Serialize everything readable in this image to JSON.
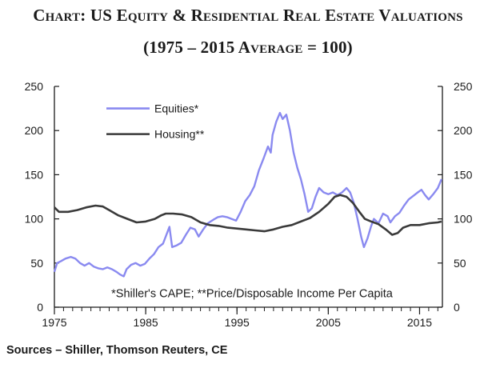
{
  "header": {
    "title_line1": "Chart: US Equity & Residential Real Estate Valuations",
    "title_line2": "(1975 – 2015 Average = 100)"
  },
  "footer": {
    "source": "Sources – Shiller, Thomson Reuters, CE"
  },
  "chart_data": {
    "type": "line",
    "title": "Chart: US Equity & Residential Real Estate Valuations (1975 – 2015 Average = 100)",
    "xlim": [
      1975,
      2017.5
    ],
    "ylim": [
      0,
      250
    ],
    "x_ticks": [
      1975,
      1985,
      1995,
      2005,
      2015
    ],
    "y_ticks": [
      0,
      50,
      100,
      150,
      200,
      250
    ],
    "y_ticks_right": [
      0,
      50,
      100,
      150,
      200,
      250
    ],
    "note": "*Shiller's CAPE; **Price/Disposable Income Per Capita",
    "legend_position": "top-left",
    "series": [
      {
        "name": "Equities*",
        "color": "#8a8af0",
        "points": [
          [
            1975,
            40
          ],
          [
            1975.3,
            50
          ],
          [
            1975.7,
            52
          ],
          [
            1976.2,
            55
          ],
          [
            1976.8,
            57
          ],
          [
            1977.3,
            55
          ],
          [
            1977.8,
            50
          ],
          [
            1978.3,
            47
          ],
          [
            1978.8,
            50
          ],
          [
            1979.3,
            46
          ],
          [
            1979.8,
            44
          ],
          [
            1980.3,
            43
          ],
          [
            1980.8,
            45
          ],
          [
            1981.3,
            43
          ],
          [
            1981.8,
            40
          ],
          [
            1982.2,
            37
          ],
          [
            1982.6,
            35
          ],
          [
            1982.9,
            43
          ],
          [
            1983.4,
            48
          ],
          [
            1983.9,
            50
          ],
          [
            1984.4,
            47
          ],
          [
            1984.9,
            49
          ],
          [
            1985.4,
            55
          ],
          [
            1985.9,
            60
          ],
          [
            1986.4,
            68
          ],
          [
            1986.9,
            72
          ],
          [
            1987.3,
            83
          ],
          [
            1987.6,
            91
          ],
          [
            1987.9,
            68
          ],
          [
            1988.4,
            70
          ],
          [
            1988.9,
            73
          ],
          [
            1989.4,
            82
          ],
          [
            1989.9,
            90
          ],
          [
            1990.4,
            88
          ],
          [
            1990.8,
            80
          ],
          [
            1991.3,
            88
          ],
          [
            1991.8,
            95
          ],
          [
            1992.4,
            99
          ],
          [
            1992.9,
            102
          ],
          [
            1993.4,
            103
          ],
          [
            1993.9,
            102
          ],
          [
            1994.4,
            100
          ],
          [
            1994.9,
            98
          ],
          [
            1995.4,
            108
          ],
          [
            1995.9,
            120
          ],
          [
            1996.4,
            127
          ],
          [
            1996.9,
            137
          ],
          [
            1997.4,
            155
          ],
          [
            1997.9,
            168
          ],
          [
            1998.4,
            182
          ],
          [
            1998.7,
            175
          ],
          [
            1998.9,
            195
          ],
          [
            1999.3,
            210
          ],
          [
            1999.7,
            220
          ],
          [
            2000.0,
            213
          ],
          [
            2000.4,
            218
          ],
          [
            2000.8,
            200
          ],
          [
            2001.2,
            175
          ],
          [
            2001.6,
            158
          ],
          [
            2002.0,
            145
          ],
          [
            2002.4,
            128
          ],
          [
            2002.8,
            108
          ],
          [
            2003.2,
            112
          ],
          [
            2003.6,
            125
          ],
          [
            2004.0,
            135
          ],
          [
            2004.5,
            130
          ],
          [
            2005.0,
            128
          ],
          [
            2005.5,
            130
          ],
          [
            2006.0,
            127
          ],
          [
            2006.5,
            130
          ],
          [
            2007.0,
            135
          ],
          [
            2007.4,
            130
          ],
          [
            2007.8,
            118
          ],
          [
            2008.2,
            100
          ],
          [
            2008.6,
            80
          ],
          [
            2008.9,
            68
          ],
          [
            2009.3,
            78
          ],
          [
            2009.7,
            92
          ],
          [
            2010.0,
            100
          ],
          [
            2010.5,
            95
          ],
          [
            2011.0,
            106
          ],
          [
            2011.5,
            103
          ],
          [
            2011.8,
            96
          ],
          [
            2012.3,
            103
          ],
          [
            2012.8,
            107
          ],
          [
            2013.3,
            115
          ],
          [
            2013.8,
            122
          ],
          [
            2014.3,
            126
          ],
          [
            2014.8,
            130
          ],
          [
            2015.2,
            133
          ],
          [
            2015.6,
            127
          ],
          [
            2016.0,
            122
          ],
          [
            2016.5,
            128
          ],
          [
            2017.0,
            135
          ],
          [
            2017.4,
            145
          ]
        ]
      },
      {
        "name": "Housing**",
        "color": "#3a3a3a",
        "points": [
          [
            1975,
            113
          ],
          [
            1975.5,
            108
          ],
          [
            1976.5,
            108
          ],
          [
            1977.5,
            110
          ],
          [
            1978.5,
            113
          ],
          [
            1979.5,
            115
          ],
          [
            1980.3,
            114
          ],
          [
            1981.0,
            110
          ],
          [
            1982.0,
            104
          ],
          [
            1983.0,
            100
          ],
          [
            1984.0,
            96
          ],
          [
            1985.0,
            97
          ],
          [
            1986.0,
            100
          ],
          [
            1986.7,
            104
          ],
          [
            1987.2,
            106
          ],
          [
            1988.0,
            106
          ],
          [
            1989.0,
            105
          ],
          [
            1990.0,
            102
          ],
          [
            1991.0,
            96
          ],
          [
            1992.0,
            93
          ],
          [
            1993.0,
            92
          ],
          [
            1994.0,
            90
          ],
          [
            1995.0,
            89
          ],
          [
            1996.0,
            88
          ],
          [
            1997.0,
            87
          ],
          [
            1998.0,
            86
          ],
          [
            1999.0,
            88
          ],
          [
            2000.0,
            91
          ],
          [
            2001.0,
            93
          ],
          [
            2002.0,
            97
          ],
          [
            2003.0,
            101
          ],
          [
            2004.0,
            108
          ],
          [
            2005.0,
            117
          ],
          [
            2005.7,
            125
          ],
          [
            2006.3,
            127
          ],
          [
            2007.0,
            125
          ],
          [
            2007.7,
            118
          ],
          [
            2008.4,
            108
          ],
          [
            2009.0,
            100
          ],
          [
            2009.7,
            97
          ],
          [
            2010.5,
            94
          ],
          [
            2011.3,
            88
          ],
          [
            2012.0,
            82
          ],
          [
            2012.6,
            84
          ],
          [
            2013.2,
            90
          ],
          [
            2014.0,
            93
          ],
          [
            2015.0,
            93
          ],
          [
            2016.0,
            95
          ],
          [
            2017.0,
            96
          ],
          [
            2017.4,
            97
          ]
        ]
      }
    ]
  }
}
